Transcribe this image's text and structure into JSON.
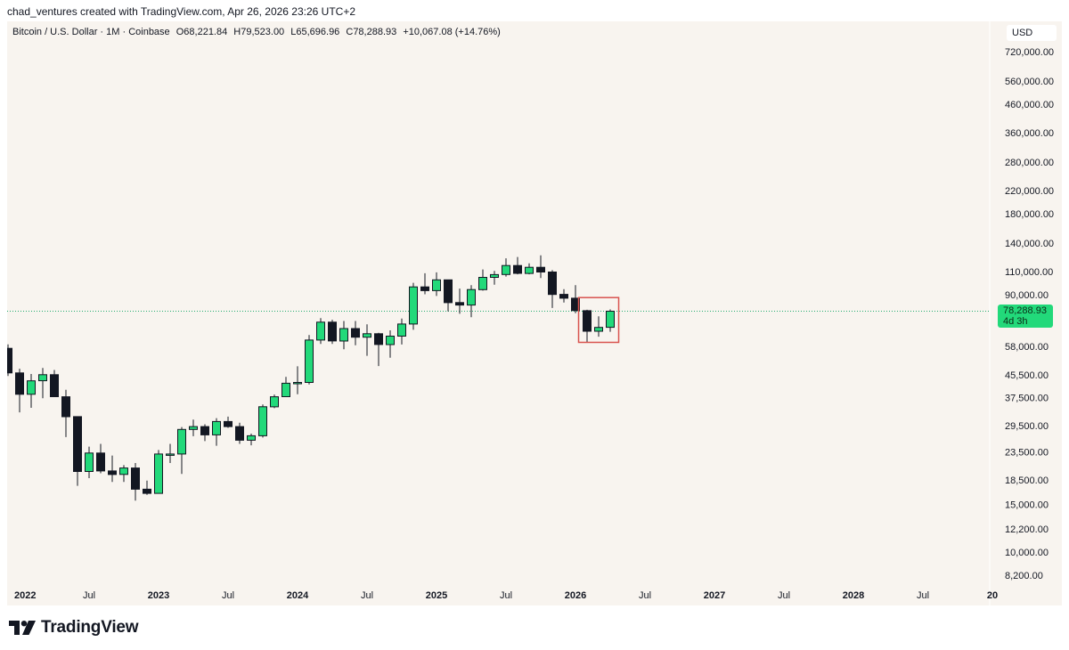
{
  "header": {
    "credit": "chad_ventures created with TradingView.com, Apr 26, 2026 23:26 UTC+2"
  },
  "legend": {
    "symbol": "Bitcoin / U.S. Dollar · 1M · Coinbase",
    "open": "O68,221.84",
    "high": "H79,523.00",
    "low": "L65,696.96",
    "close": "C78,288.93",
    "change": "+10,067.08 (+14.76%)"
  },
  "toolbar": {
    "currency_label": "USD"
  },
  "last_price": {
    "value": "78,288.93",
    "countdown": "4d 3h"
  },
  "footer": {
    "brand": "TradingView"
  },
  "colors": {
    "up": "#22d97a",
    "down": "#131722",
    "background": "#f8f4ef",
    "price_line": "#22ab6f",
    "highlight_box": "#d9534f"
  },
  "chart_data": {
    "type": "candlestick",
    "y_scale": "log",
    "ylim": [
      7700,
      800000
    ],
    "x_tick_labels": [
      "2022",
      "Jul",
      "2023",
      "Jul",
      "2024",
      "Jul",
      "2025",
      "Jul",
      "2026",
      "Jul",
      "2027",
      "Jul",
      "2028",
      "Jul",
      "20"
    ],
    "y_tick_labels": [
      "720,000.00",
      "560,000.00",
      "460,000.00",
      "360,000.00",
      "280,000.00",
      "220,000.00",
      "180,000.00",
      "140,000.00",
      "110,000.00",
      "90,000.00",
      "58,000.00",
      "45,500.00",
      "37,500.00",
      "29,500.00",
      "23,500.00",
      "18,500.00",
      "15,000.00",
      "12,200.00",
      "10,000.00",
      "8,200.00"
    ],
    "y_tick_values": [
      720000,
      560000,
      460000,
      360000,
      280000,
      220000,
      180000,
      140000,
      110000,
      90000,
      58000,
      45500,
      37500,
      29500,
      23500,
      18500,
      15000,
      12200,
      10000,
      8200
    ],
    "highlight": {
      "from_month": "2026-02",
      "to_month": "2026-04",
      "low": 60000,
      "high": 88000
    },
    "candles": [
      {
        "t": "2021-12",
        "o": 57000,
        "h": 59000,
        "l": 45000,
        "c": 46200
      },
      {
        "t": "2022-01",
        "o": 46200,
        "h": 47900,
        "l": 33000,
        "c": 38500
      },
      {
        "t": "2022-02",
        "o": 38500,
        "h": 45800,
        "l": 34300,
        "c": 43200
      },
      {
        "t": "2022-03",
        "o": 43200,
        "h": 48200,
        "l": 37200,
        "c": 45500
      },
      {
        "t": "2022-04",
        "o": 45500,
        "h": 47400,
        "l": 37700,
        "c": 37700
      },
      {
        "t": "2022-05",
        "o": 37700,
        "h": 40000,
        "l": 26700,
        "c": 31800
      },
      {
        "t": "2022-06",
        "o": 31800,
        "h": 31900,
        "l": 17600,
        "c": 19900
      },
      {
        "t": "2022-07",
        "o": 19900,
        "h": 24600,
        "l": 18800,
        "c": 23300
      },
      {
        "t": "2022-08",
        "o": 23300,
        "h": 25200,
        "l": 19600,
        "c": 20000
      },
      {
        "t": "2022-09",
        "o": 20000,
        "h": 22800,
        "l": 18200,
        "c": 19400
      },
      {
        "t": "2022-10",
        "o": 19400,
        "h": 21000,
        "l": 18200,
        "c": 20500
      },
      {
        "t": "2022-11",
        "o": 20500,
        "h": 21400,
        "l": 15500,
        "c": 17100
      },
      {
        "t": "2022-12",
        "o": 17100,
        "h": 18400,
        "l": 16300,
        "c": 16500
      },
      {
        "t": "2023-01",
        "o": 16500,
        "h": 23900,
        "l": 16500,
        "c": 23100
      },
      {
        "t": "2023-02",
        "o": 23100,
        "h": 25200,
        "l": 21400,
        "c": 23100
      },
      {
        "t": "2023-03",
        "o": 23100,
        "h": 29100,
        "l": 19500,
        "c": 28500
      },
      {
        "t": "2023-04",
        "o": 28500,
        "h": 31000,
        "l": 26900,
        "c": 29200
      },
      {
        "t": "2023-05",
        "o": 29200,
        "h": 29800,
        "l": 25800,
        "c": 27200
      },
      {
        "t": "2023-06",
        "o": 27200,
        "h": 31400,
        "l": 24800,
        "c": 30500
      },
      {
        "t": "2023-07",
        "o": 30500,
        "h": 31800,
        "l": 28900,
        "c": 29200
      },
      {
        "t": "2023-08",
        "o": 29200,
        "h": 30200,
        "l": 25200,
        "c": 26000
      },
      {
        "t": "2023-09",
        "o": 26000,
        "h": 27500,
        "l": 24900,
        "c": 27000
      },
      {
        "t": "2023-10",
        "o": 27000,
        "h": 35300,
        "l": 26600,
        "c": 34600
      },
      {
        "t": "2023-11",
        "o": 34600,
        "h": 38400,
        "l": 34200,
        "c": 37700
      },
      {
        "t": "2023-12",
        "o": 37700,
        "h": 44700,
        "l": 37600,
        "c": 42300
      },
      {
        "t": "2024-01",
        "o": 42300,
        "h": 48900,
        "l": 38500,
        "c": 42600
      },
      {
        "t": "2024-02",
        "o": 42600,
        "h": 63900,
        "l": 41900,
        "c": 61200
      },
      {
        "t": "2024-03",
        "o": 61200,
        "h": 73800,
        "l": 59200,
        "c": 71300
      },
      {
        "t": "2024-04",
        "o": 71300,
        "h": 72800,
        "l": 59200,
        "c": 60700
      },
      {
        "t": "2024-05",
        "o": 60700,
        "h": 72000,
        "l": 56600,
        "c": 67500
      },
      {
        "t": "2024-06",
        "o": 67500,
        "h": 72000,
        "l": 58500,
        "c": 62700
      },
      {
        "t": "2024-07",
        "o": 62700,
        "h": 70000,
        "l": 53500,
        "c": 64600
      },
      {
        "t": "2024-08",
        "o": 64600,
        "h": 65100,
        "l": 49000,
        "c": 58900
      },
      {
        "t": "2024-09",
        "o": 58900,
        "h": 66500,
        "l": 52600,
        "c": 63300
      },
      {
        "t": "2024-10",
        "o": 63300,
        "h": 73600,
        "l": 58900,
        "c": 70200
      },
      {
        "t": "2024-11",
        "o": 70200,
        "h": 99800,
        "l": 66800,
        "c": 96400
      },
      {
        "t": "2024-12",
        "o": 96400,
        "h": 108300,
        "l": 90500,
        "c": 93400
      },
      {
        "t": "2025-01",
        "o": 93400,
        "h": 109100,
        "l": 89200,
        "c": 102400
      },
      {
        "t": "2025-02",
        "o": 102400,
        "h": 102500,
        "l": 78200,
        "c": 84300
      },
      {
        "t": "2025-03",
        "o": 84300,
        "h": 95000,
        "l": 76600,
        "c": 82500
      },
      {
        "t": "2025-04",
        "o": 82500,
        "h": 97900,
        "l": 74400,
        "c": 94200
      },
      {
        "t": "2025-05",
        "o": 94200,
        "h": 111900,
        "l": 93400,
        "c": 104600
      },
      {
        "t": "2025-06",
        "o": 104600,
        "h": 110500,
        "l": 98200,
        "c": 107100
      },
      {
        "t": "2025-07",
        "o": 107100,
        "h": 123100,
        "l": 105300,
        "c": 115700
      },
      {
        "t": "2025-08",
        "o": 115700,
        "h": 124500,
        "l": 107300,
        "c": 108200
      },
      {
        "t": "2025-09",
        "o": 108200,
        "h": 117900,
        "l": 107300,
        "c": 114000
      },
      {
        "t": "2025-10",
        "o": 114000,
        "h": 126200,
        "l": 104000,
        "c": 109500
      },
      {
        "t": "2025-11",
        "o": 109500,
        "h": 111200,
        "l": 80500,
        "c": 90400
      },
      {
        "t": "2025-12",
        "o": 90400,
        "h": 94600,
        "l": 84400,
        "c": 87500
      },
      {
        "t": "2026-01",
        "o": 87500,
        "h": 97900,
        "l": 77000,
        "c": 78700
      },
      {
        "t": "2026-02",
        "o": 78700,
        "h": 79300,
        "l": 60000,
        "c": 66000
      },
      {
        "t": "2026-03",
        "o": 66000,
        "h": 75000,
        "l": 63000,
        "c": 68200
      },
      {
        "t": "2026-04",
        "o": 68221.84,
        "h": 79523.0,
        "l": 65696.96,
        "c": 78288.93
      }
    ]
  }
}
